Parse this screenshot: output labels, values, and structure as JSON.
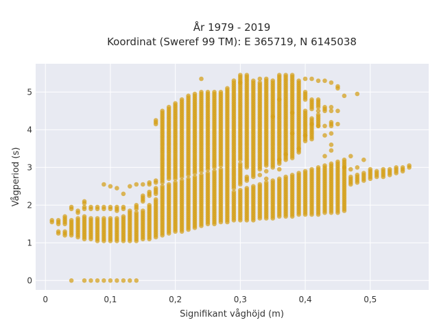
{
  "chart_data": {
    "type": "scatter",
    "title": "År 1979 - 2019",
    "subtitle": "Koordinat (Sweref 99 TM): E 365719, N 6145038",
    "xlabel": "Signifikant våghöjd (m)",
    "ylabel": "Vågperiod (s)",
    "xlim": [
      -0.015,
      0.59
    ],
    "ylim": [
      -0.25,
      5.75
    ],
    "x_ticks": [
      0,
      0.1,
      0.2,
      0.3,
      0.4,
      0.5
    ],
    "x_tick_labels": [
      "0",
      "0,1",
      "0,2",
      "0,3",
      "0,4",
      "0,5"
    ],
    "y_ticks": [
      0,
      1,
      2,
      3,
      4,
      5
    ],
    "y_tick_labels": [
      "0",
      "1",
      "2",
      "3",
      "4",
      "5"
    ],
    "grid": true,
    "marker_color": "#D4A017",
    "plot_background": "#E8EAF2",
    "x_step": 0.01,
    "columns": [
      {
        "x": 0.01,
        "ranges": [
          [
            1.55,
            1.6
          ]
        ]
      },
      {
        "x": 0.02,
        "ranges": [
          [
            1.25,
            1.3
          ],
          [
            1.5,
            1.6
          ]
        ]
      },
      {
        "x": 0.03,
        "ranges": [
          [
            1.2,
            1.3
          ],
          [
            1.5,
            1.7
          ]
        ]
      },
      {
        "x": 0.04,
        "ranges": [
          [
            0,
            0
          ],
          [
            1.2,
            1.6
          ],
          [
            1.9,
            1.95
          ]
        ]
      },
      {
        "x": 0.05,
        "ranges": [
          [
            1.15,
            1.65
          ],
          [
            1.8,
            1.85
          ]
        ]
      },
      {
        "x": 0.06,
        "ranges": [
          [
            0,
            0
          ],
          [
            1.1,
            1.7
          ],
          [
            1.9,
            1.95
          ],
          [
            2.05,
            2.1
          ]
        ]
      },
      {
        "x": 0.07,
        "ranges": [
          [
            0,
            0
          ],
          [
            1.1,
            1.65
          ],
          [
            1.9,
            1.95
          ]
        ]
      },
      {
        "x": 0.08,
        "ranges": [
          [
            0,
            0
          ],
          [
            1.05,
            1.65
          ],
          [
            1.9,
            1.95
          ]
        ]
      },
      {
        "x": 0.09,
        "ranges": [
          [
            0,
            0
          ],
          [
            1.05,
            1.65
          ],
          [
            1.9,
            1.95
          ],
          [
            2.55,
            2.55
          ]
        ]
      },
      {
        "x": 0.1,
        "ranges": [
          [
            0,
            0
          ],
          [
            1.05,
            1.65
          ],
          [
            1.9,
            1.95
          ],
          [
            2.5,
            2.5
          ]
        ]
      },
      {
        "x": 0.11,
        "ranges": [
          [
            0,
            0
          ],
          [
            1.05,
            1.65
          ],
          [
            1.85,
            1.95
          ],
          [
            2.45,
            2.45
          ]
        ]
      },
      {
        "x": 0.12,
        "ranges": [
          [
            0,
            0
          ],
          [
            1.05,
            1.7
          ],
          [
            1.9,
            1.95
          ],
          [
            2.3,
            2.3
          ]
        ]
      },
      {
        "x": 0.13,
        "ranges": [
          [
            0,
            0
          ],
          [
            1.05,
            1.75
          ],
          [
            1.8,
            1.85
          ],
          [
            2.5,
            2.5
          ]
        ]
      },
      {
        "x": 0.14,
        "ranges": [
          [
            0,
            0
          ],
          [
            1.05,
            1.8
          ],
          [
            1.9,
            2.0
          ],
          [
            2.55,
            2.55
          ]
        ]
      },
      {
        "x": 0.15,
        "ranges": [
          [
            1.1,
            1.85
          ],
          [
            2.1,
            2.25
          ],
          [
            2.55,
            2.55
          ]
        ]
      },
      {
        "x": 0.16,
        "ranges": [
          [
            1.1,
            2.0
          ],
          [
            2.25,
            2.35
          ],
          [
            2.55,
            2.6
          ]
        ]
      },
      {
        "x": 0.17,
        "ranges": [
          [
            1.15,
            2.15
          ],
          [
            2.3,
            2.45
          ],
          [
            2.6,
            2.65
          ],
          [
            4.15,
            4.25
          ]
        ]
      },
      {
        "x": 0.18,
        "ranges": [
          [
            1.2,
            2.5
          ],
          [
            2.6,
            4.5
          ]
        ]
      },
      {
        "x": 0.19,
        "ranges": [
          [
            1.25,
            2.55
          ],
          [
            2.7,
            4.6
          ]
        ]
      },
      {
        "x": 0.2,
        "ranges": [
          [
            1.3,
            2.6
          ],
          [
            2.7,
            4.7
          ]
        ]
      },
      {
        "x": 0.21,
        "ranges": [
          [
            1.3,
            2.65
          ],
          [
            2.75,
            4.8
          ]
        ]
      },
      {
        "x": 0.22,
        "ranges": [
          [
            1.35,
            2.7
          ],
          [
            2.8,
            4.9
          ]
        ]
      },
      {
        "x": 0.23,
        "ranges": [
          [
            1.4,
            2.75
          ],
          [
            2.85,
            4.95
          ]
        ]
      },
      {
        "x": 0.24,
        "ranges": [
          [
            1.45,
            2.8
          ],
          [
            2.9,
            5.0
          ],
          [
            5.35,
            5.35
          ]
        ]
      },
      {
        "x": 0.25,
        "ranges": [
          [
            1.5,
            2.85
          ],
          [
            2.95,
            5.0
          ]
        ]
      },
      {
        "x": 0.26,
        "ranges": [
          [
            1.5,
            2.9
          ],
          [
            3.0,
            5.0
          ]
        ]
      },
      {
        "x": 0.27,
        "ranges": [
          [
            1.55,
            2.95
          ],
          [
            3.05,
            5.0
          ]
        ]
      },
      {
        "x": 0.28,
        "ranges": [
          [
            1.55,
            3.0
          ],
          [
            3.05,
            5.1
          ]
        ]
      },
      {
        "x": 0.29,
        "ranges": [
          [
            1.6,
            2.35
          ],
          [
            2.45,
            3.05
          ],
          [
            3.1,
            5.3
          ]
        ]
      },
      {
        "x": 0.3,
        "ranges": [
          [
            1.6,
            2.4
          ],
          [
            2.55,
            3.1
          ],
          [
            3.2,
            5.45
          ]
        ]
      },
      {
        "x": 0.31,
        "ranges": [
          [
            1.6,
            2.45
          ],
          [
            2.65,
            2.75
          ],
          [
            3.0,
            5.4
          ]
        ]
      },
      {
        "x": 0.32,
        "ranges": [
          [
            1.6,
            2.5
          ],
          [
            2.8,
            5.3
          ]
        ]
      },
      {
        "x": 0.33,
        "ranges": [
          [
            1.65,
            2.55
          ],
          [
            2.95,
            5.25
          ]
        ]
      },
      {
        "x": 0.34,
        "ranges": [
          [
            1.65,
            2.6
          ],
          [
            3.05,
            5.35
          ]
        ]
      },
      {
        "x": 0.35,
        "ranges": [
          [
            1.65,
            2.65
          ],
          [
            3.0,
            5.3
          ]
        ]
      },
      {
        "x": 0.36,
        "ranges": [
          [
            1.7,
            2.7
          ],
          [
            3.1,
            5.4
          ]
        ]
      },
      {
        "x": 0.37,
        "ranges": [
          [
            1.7,
            2.75
          ],
          [
            3.2,
            5.45
          ]
        ]
      },
      {
        "x": 0.38,
        "ranges": [
          [
            1.7,
            2.8
          ],
          [
            3.25,
            5.4
          ]
        ]
      },
      {
        "x": 0.39,
        "ranges": [
          [
            1.75,
            2.85
          ],
          [
            3.4,
            5.3
          ]
        ]
      },
      {
        "x": 0.4,
        "ranges": [
          [
            1.75,
            2.9
          ],
          [
            3.7,
            4.5
          ],
          [
            4.8,
            5.0
          ]
        ]
      },
      {
        "x": 0.41,
        "ranges": [
          [
            1.75,
            2.95
          ],
          [
            3.8,
            4.3
          ],
          [
            4.6,
            4.8
          ]
        ]
      },
      {
        "x": 0.42,
        "ranges": [
          [
            1.75,
            3.0
          ],
          [
            4.1,
            4.4
          ],
          [
            4.6,
            4.8
          ]
        ]
      },
      {
        "x": 0.43,
        "ranges": [
          [
            1.8,
            3.05
          ],
          [
            3.3,
            3.3
          ],
          [
            4.5,
            4.6
          ]
        ]
      },
      {
        "x": 0.44,
        "ranges": [
          [
            1.8,
            3.1
          ],
          [
            3.6,
            3.6
          ],
          [
            4.1,
            4.2
          ],
          [
            4.6,
            4.6
          ]
        ]
      },
      {
        "x": 0.45,
        "ranges": [
          [
            1.8,
            3.15
          ],
          [
            4.5,
            4.5
          ],
          [
            5.1,
            5.1
          ]
        ]
      },
      {
        "x": 0.46,
        "ranges": [
          [
            1.85,
            3.2
          ]
        ]
      },
      {
        "x": 0.47,
        "ranges": [
          [
            2.55,
            2.75
          ]
        ]
      },
      {
        "x": 0.48,
        "ranges": [
          [
            2.6,
            2.8
          ]
        ]
      },
      {
        "x": 0.49,
        "ranges": [
          [
            2.65,
            2.85
          ]
        ]
      },
      {
        "x": 0.5,
        "ranges": [
          [
            2.7,
            2.9
          ]
        ]
      },
      {
        "x": 0.51,
        "ranges": [
          [
            2.75,
            2.9
          ]
        ]
      },
      {
        "x": 0.52,
        "ranges": [
          [
            2.75,
            2.95
          ]
        ]
      },
      {
        "x": 0.53,
        "ranges": [
          [
            2.8,
            2.95
          ]
        ]
      },
      {
        "x": 0.54,
        "ranges": [
          [
            2.85,
            3.0
          ]
        ]
      },
      {
        "x": 0.55,
        "ranges": [
          [
            2.9,
            3.0
          ]
        ]
      },
      {
        "x": 0.56,
        "ranges": [
          [
            3.0,
            3.05
          ]
        ]
      }
    ],
    "extra_points": [
      [
        0.3,
        5.25
      ],
      [
        0.31,
        5.45
      ],
      [
        0.33,
        5.35
      ],
      [
        0.36,
        5.45
      ],
      [
        0.38,
        5.45
      ],
      [
        0.4,
        5.35
      ],
      [
        0.41,
        5.35
      ],
      [
        0.42,
        5.3
      ],
      [
        0.43,
        5.3
      ],
      [
        0.44,
        5.25
      ],
      [
        0.45,
        5.15
      ],
      [
        0.46,
        4.9
      ],
      [
        0.48,
        4.95
      ],
      [
        0.44,
        4.5
      ],
      [
        0.41,
        4.55
      ],
      [
        0.42,
        4.5
      ],
      [
        0.41,
        4.15
      ],
      [
        0.42,
        4.1
      ],
      [
        0.43,
        4.1
      ],
      [
        0.44,
        3.9
      ],
      [
        0.44,
        3.45
      ],
      [
        0.47,
        3.3
      ],
      [
        0.49,
        3.2
      ],
      [
        0.43,
        3.85
      ],
      [
        0.41,
        3.75
      ],
      [
        0.38,
        3.9
      ],
      [
        0.4,
        3.85
      ],
      [
        0.39,
        3.5
      ],
      [
        0.36,
        3.2
      ],
      [
        0.37,
        3.35
      ],
      [
        0.35,
        4.35
      ],
      [
        0.36,
        4.8
      ],
      [
        0.38,
        4.45
      ],
      [
        0.32,
        2.75
      ],
      [
        0.33,
        2.8
      ],
      [
        0.34,
        2.7
      ],
      [
        0.36,
        2.95
      ],
      [
        0.34,
        2.9
      ],
      [
        0.45,
        4.15
      ],
      [
        0.46,
        3.0
      ],
      [
        0.48,
        3.0
      ],
      [
        0.47,
        2.95
      ],
      [
        0.5,
        2.95
      ]
    ]
  }
}
